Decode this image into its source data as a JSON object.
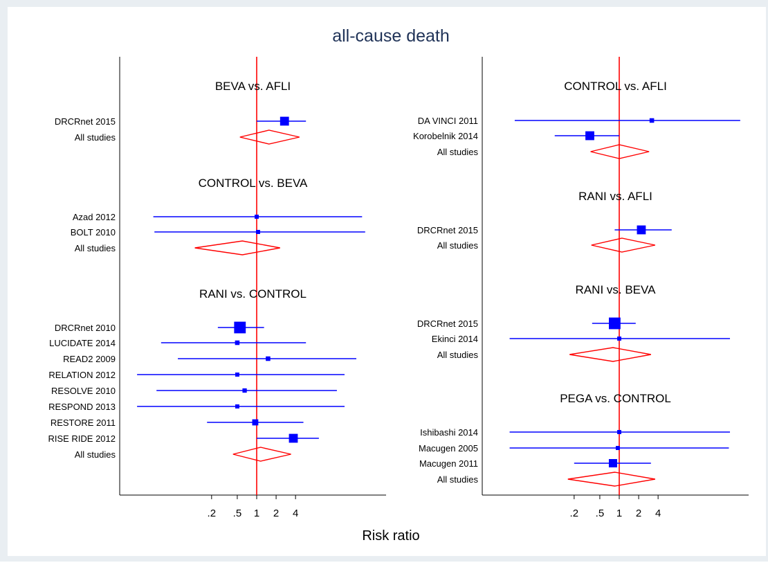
{
  "title": "all-cause death",
  "x_axis_label": "Risk ratio",
  "colors": {
    "background": "#ffffff",
    "outer_band": "#e9eef2",
    "estimates": "#0000ff",
    "pooled_and_null": "#ff0000",
    "title": "#1f3257"
  },
  "chart_data": [
    {
      "type": "forest",
      "panel": "left",
      "x_scale": "log",
      "x_ticks": [
        0.2,
        0.5,
        1,
        2,
        4
      ],
      "x_tick_labels": [
        ".2",
        ".5",
        "1",
        "2",
        "4"
      ],
      "null_line": 1,
      "groups": [
        {
          "label": "BEVA vs. AFLI",
          "studies": [
            {
              "name": "DRCRnet 2015",
              "rr": 2.7,
              "lo": 1.0,
              "hi": 5.8,
              "weight": 0.55
            }
          ],
          "pooled": {
            "name": "All studies",
            "rr": 1.55,
            "lo": 0.55,
            "hi": 4.6
          }
        },
        {
          "label": "CONTROL vs. BEVA",
          "studies": [
            {
              "name": "Azad 2012",
              "rr": 1.0,
              "lo": 0.025,
              "hi": 43,
              "weight": 0.12
            },
            {
              "name": "BOLT 2010",
              "rr": 1.05,
              "lo": 0.026,
              "hi": 48,
              "weight": 0.12
            }
          ],
          "pooled": {
            "name": "All studies",
            "rr": 0.6,
            "lo": 0.11,
            "hi": 2.3
          }
        },
        {
          "label": "RANI vs. CONTROL",
          "studies": [
            {
              "name": "DRCRnet 2010",
              "rr": 0.55,
              "lo": 0.25,
              "hi": 1.3,
              "weight": 0.8
            },
            {
              "name": "LUCIDATE 2014",
              "rr": 0.5,
              "lo": 0.033,
              "hi": 5.8,
              "weight": 0.16
            },
            {
              "name": "READ2 2009",
              "rr": 1.5,
              "lo": 0.06,
              "hi": 35,
              "weight": 0.16
            },
            {
              "name": "RELATION 2012",
              "rr": 0.5,
              "lo": 0.014,
              "hi": 23,
              "weight": 0.12
            },
            {
              "name": "RESOLVE 2010",
              "rr": 0.65,
              "lo": 0.028,
              "hi": 17.5,
              "weight": 0.14
            },
            {
              "name": "RESPOND 2013",
              "rr": 0.5,
              "lo": 0.014,
              "hi": 23,
              "weight": 0.12
            },
            {
              "name": "RESTORE 2011",
              "rr": 0.95,
              "lo": 0.17,
              "hi": 5.3,
              "weight": 0.3
            },
            {
              "name": "RISE RIDE 2012",
              "rr": 3.7,
              "lo": 1.0,
              "hi": 9.2,
              "weight": 0.55
            }
          ],
          "pooled": {
            "name": "All studies",
            "rr": 1.15,
            "lo": 0.43,
            "hi": 3.4
          }
        }
      ]
    },
    {
      "type": "forest",
      "panel": "right",
      "x_scale": "log",
      "x_ticks": [
        0.2,
        0.5,
        1,
        2,
        4
      ],
      "x_tick_labels": [
        ".2",
        ".5",
        "1",
        "2",
        "4"
      ],
      "null_line": 1,
      "groups": [
        {
          "label": "CONTROL vs. AFLI",
          "studies": [
            {
              "name": "DA VINCI 2011",
              "rr": 3.2,
              "lo": 0.024,
              "hi": 75,
              "weight": 0.16
            },
            {
              "name": "Korobelnik 2014",
              "rr": 0.35,
              "lo": 0.1,
              "hi": 1.0,
              "weight": 0.55
            }
          ],
          "pooled": {
            "name": "All studies",
            "rr": 1.0,
            "lo": 0.36,
            "hi": 2.9
          }
        },
        {
          "label": "RANI vs. AFLI",
          "studies": [
            {
              "name": "DRCRnet 2015",
              "rr": 2.2,
              "lo": 0.85,
              "hi": 6.5,
              "weight": 0.55
            }
          ],
          "pooled": {
            "name": "All studies",
            "rr": 1.1,
            "lo": 0.37,
            "hi": 3.6
          }
        },
        {
          "label": "RANI vs. BEVA",
          "studies": [
            {
              "name": "DRCRnet 2015",
              "rr": 0.85,
              "lo": 0.38,
              "hi": 1.8,
              "weight": 0.8
            },
            {
              "name": "Ekinci 2014",
              "rr": 1.0,
              "lo": 0.02,
              "hi": 52,
              "weight": 0.12
            }
          ],
          "pooled": {
            "name": "All studies",
            "rr": 0.8,
            "lo": 0.17,
            "hi": 3.1
          }
        },
        {
          "label": "PEGA vs. CONTROL",
          "studies": [
            {
              "name": "Ishibashi 2014",
              "rr": 1.0,
              "lo": 0.02,
              "hi": 52,
              "weight": 0.12
            },
            {
              "name": "Macugen 2005",
              "rr": 0.95,
              "lo": 0.02,
              "hi": 50,
              "weight": 0.12
            },
            {
              "name": "Macugen 2011",
              "rr": 0.8,
              "lo": 0.2,
              "hi": 3.1,
              "weight": 0.5
            }
          ],
          "pooled": {
            "name": "All studies",
            "rr": 0.85,
            "lo": 0.16,
            "hi": 3.6
          }
        }
      ]
    }
  ]
}
